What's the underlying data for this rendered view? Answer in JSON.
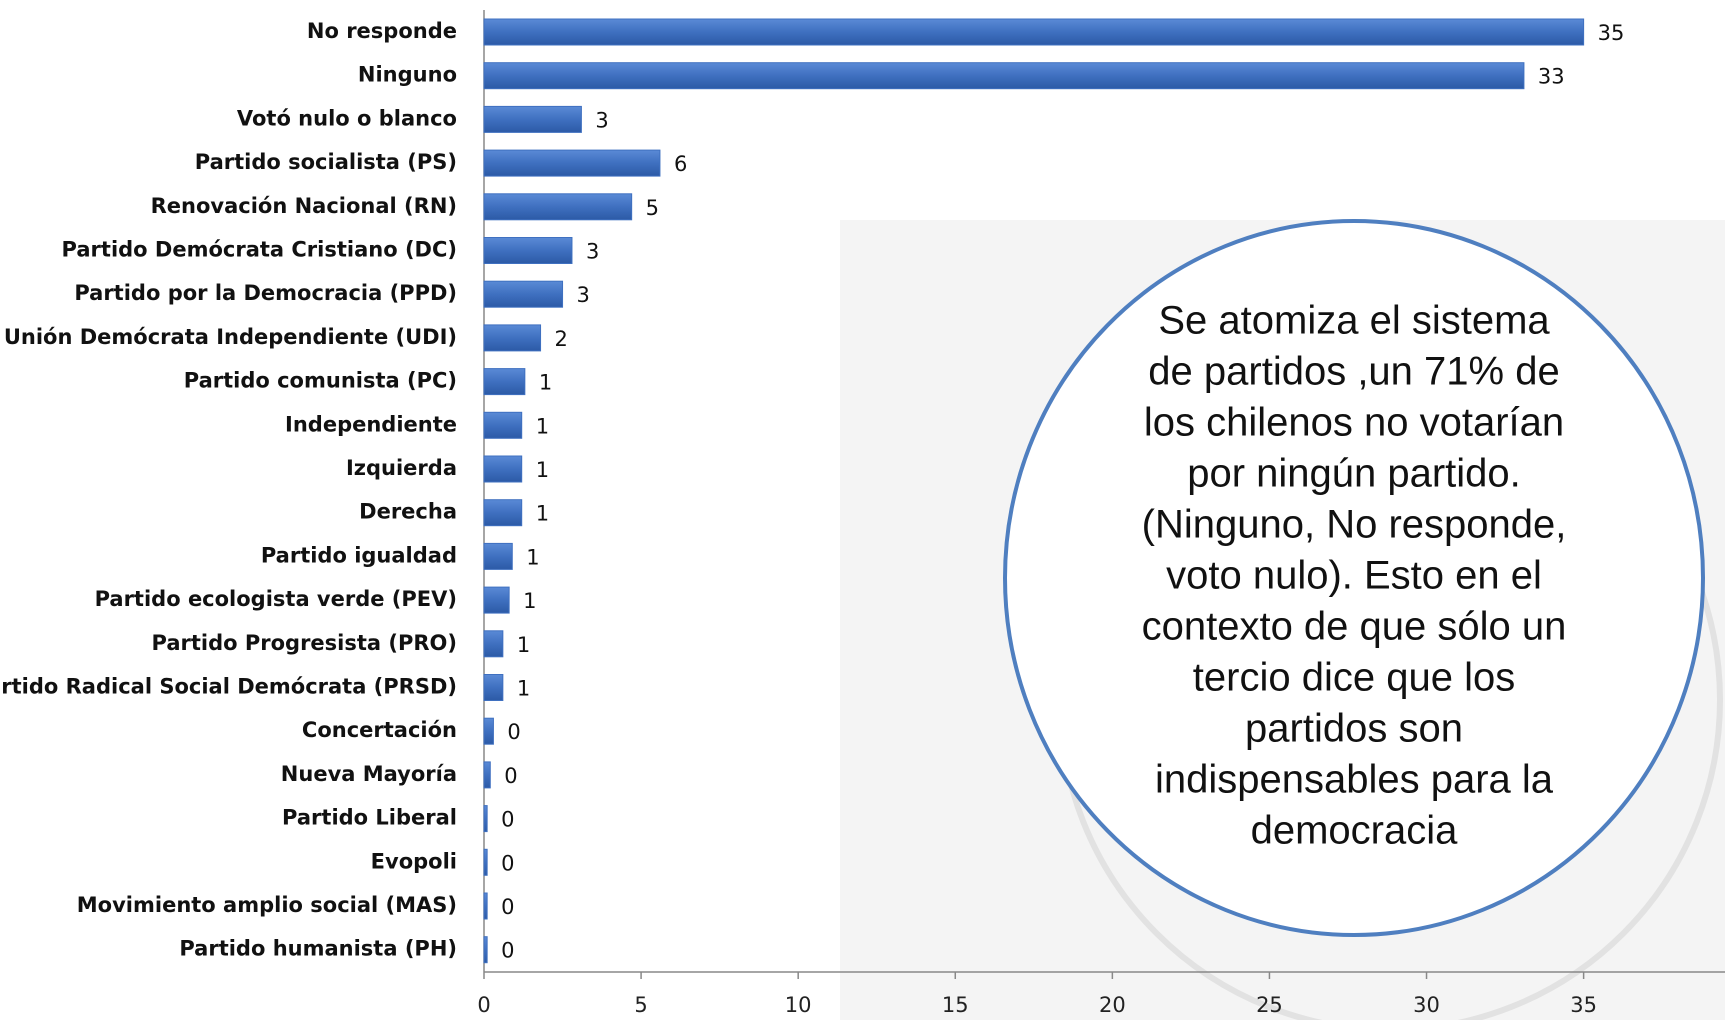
{
  "chart_data": {
    "type": "bar",
    "orientation": "horizontal",
    "categories": [
      "No responde",
      "Ninguno",
      "Votó nulo o blanco",
      "Partido socialista (PS)",
      "Renovación Nacional (RN)",
      "Partido Demócrata Cristiano (DC)",
      "Partido por la Democracia (PPD)",
      "Unión Demócrata Independiente (UDI)",
      "Partido comunista (PC)",
      "Independiente",
      "Izquierda",
      "Derecha",
      "Partido igualdad",
      "Partido ecologista verde (PEV)",
      "Partido Progresista (PRO)",
      "Partido Radical Social Demócrata (PRSD)",
      "Concertación",
      "Nueva Mayoría",
      "Partido Liberal",
      "Evopoli",
      "Movimiento amplio social (MAS)",
      "Partido humanista (PH)"
    ],
    "values": [
      35,
      33.1,
      3.1,
      5.6,
      4.7,
      2.8,
      2.5,
      1.8,
      1.3,
      1.2,
      1.2,
      1.2,
      0.9,
      0.8,
      0.6,
      0.6,
      0.3,
      0.2,
      0.1,
      0.1,
      0.1,
      0.1
    ],
    "value_labels": [
      "35",
      "33",
      "3",
      "6",
      "5",
      "3",
      "3",
      "2",
      "1",
      "1",
      "1",
      "1",
      "1",
      "1",
      "1",
      "1",
      "0",
      "0",
      "0",
      "0",
      "0",
      "0"
    ],
    "color": "#3f70c0",
    "xlim": [
      0,
      39.5
    ],
    "xticks": [
      0,
      5,
      10,
      15,
      20,
      25,
      30,
      35
    ],
    "annotation": [
      "Se atomiza el sistema",
      "de partidos ,un 71% de",
      "los chilenos no votarían",
      "por ningún partido.",
      "(Ninguno, No responde,",
      "voto nulo). Esto en el",
      "contexto de que sólo un",
      "tercio dice que los",
      "partidos son",
      "indispensables para la",
      "democracia"
    ]
  }
}
